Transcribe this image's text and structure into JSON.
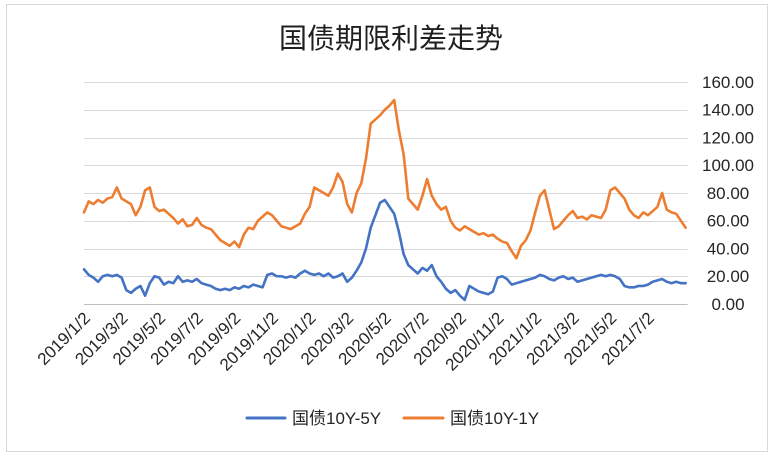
{
  "chart_data": {
    "type": "line",
    "title": "国债期限利差走势",
    "x_tick_labels": [
      "2019/1/2",
      "2019/3/2",
      "2019/5/2",
      "2019/7/2",
      "2019/9/2",
      "2019/11/2",
      "2020/1/2",
      "2020/3/2",
      "2020/5/2",
      "2020/7/2",
      "2020/9/2",
      "2020/11/2",
      "2021/1/2",
      "2021/3/2",
      "2021/5/2",
      "2021/7/2"
    ],
    "samples_per_tick_interval": 8,
    "y_tick_labels": [
      "0.00",
      "20.00",
      "40.00",
      "60.00",
      "80.00",
      "100.00",
      "120.00",
      "140.00",
      "160.00"
    ],
    "ylim": [
      0,
      160
    ],
    "grid": true,
    "legend_position": "bottom",
    "series": [
      {
        "name": "国债10Y-5Y",
        "color": "#4472C4",
        "values": [
          25,
          21,
          19,
          16,
          20,
          21,
          20,
          21,
          19,
          10,
          8,
          11,
          13,
          6,
          15,
          20,
          19,
          14,
          16,
          15,
          20,
          16,
          17,
          16,
          18,
          15,
          14,
          13,
          11,
          10,
          11,
          10,
          12,
          11,
          13,
          12,
          14,
          13,
          12,
          21,
          22,
          20,
          20,
          19,
          20,
          19,
          22,
          24,
          22,
          21,
          22,
          20,
          22,
          19,
          20,
          22,
          16,
          19,
          24,
          30,
          40,
          55,
          64,
          73,
          75,
          70,
          65,
          52,
          36,
          28,
          25,
          22,
          26,
          24,
          28,
          20,
          16,
          11,
          8,
          10,
          6,
          3,
          13,
          11,
          9,
          8,
          7,
          9,
          19,
          20,
          18,
          14,
          15,
          16,
          17,
          18,
          19,
          21,
          20,
          18,
          17,
          19,
          20,
          18,
          19,
          16,
          17,
          18,
          19,
          20,
          21,
          20,
          21,
          20,
          18,
          13,
          12,
          12,
          13,
          13,
          14,
          16,
          17,
          18,
          16,
          15,
          16,
          15,
          15
        ]
      },
      {
        "name": "国债10Y-1Y",
        "color": "#ED7D31",
        "values": [
          66,
          74,
          72,
          75,
          73,
          76,
          77,
          84,
          76,
          74,
          72,
          64,
          70,
          82,
          84,
          70,
          67,
          68,
          65,
          62,
          58,
          61,
          56,
          57,
          62,
          57,
          55,
          54,
          50,
          46,
          44,
          42,
          45,
          41,
          50,
          55,
          54,
          60,
          63,
          66,
          64,
          60,
          56,
          55,
          54,
          56,
          58,
          65,
          70,
          84,
          82,
          80,
          78,
          84,
          94,
          88,
          72,
          66,
          80,
          87,
          105,
          130,
          133,
          136,
          140,
          143,
          147,
          125,
          108,
          76,
          72,
          68,
          78,
          90,
          78,
          72,
          68,
          70,
          60,
          55,
          53,
          56,
          54,
          52,
          50,
          51,
          49,
          50,
          47,
          45,
          44,
          38,
          33,
          42,
          46,
          53,
          66,
          78,
          82,
          68,
          54,
          56,
          60,
          64,
          67,
          62,
          63,
          61,
          64,
          63,
          62,
          68,
          82,
          84,
          80,
          76,
          68,
          64,
          62,
          66,
          64,
          67,
          70,
          80,
          68,
          66,
          65,
          60,
          55
        ]
      }
    ]
  }
}
